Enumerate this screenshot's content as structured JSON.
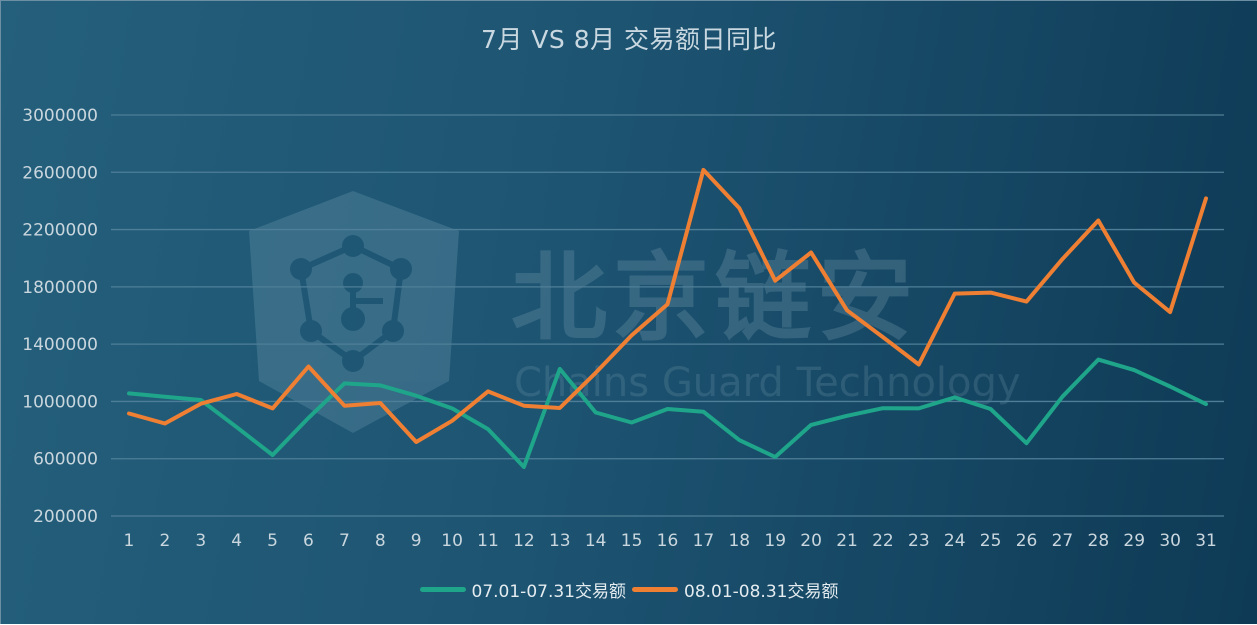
{
  "title": "7月 VS 8月 交易额日同比",
  "watermark": {
    "cn_text": "北京链安",
    "en_text": "Chains Guard Technology",
    "logo": "shield-network-logo"
  },
  "legend": [
    {
      "label": "07.01-07.31交易额",
      "color": "#1fa58a"
    },
    {
      "label": "08.01-08.31交易额",
      "color": "#ee7f33"
    }
  ],
  "colors": {
    "background_start": "#245f7b",
    "background_end": "#0e3a55",
    "gridline": "#4f7f98",
    "tick_text": "#c9d6de",
    "title_text": "#c9d8e0"
  },
  "chart_data": {
    "type": "line",
    "title": "7月 VS 8月 交易额日同比",
    "xlabel": "",
    "ylabel": "",
    "x": [
      1,
      2,
      3,
      4,
      5,
      6,
      7,
      8,
      9,
      10,
      11,
      12,
      13,
      14,
      15,
      16,
      17,
      18,
      19,
      20,
      21,
      22,
      23,
      24,
      25,
      26,
      27,
      28,
      29,
      30,
      31
    ],
    "y_ticks": [
      200000,
      600000,
      1000000,
      1400000,
      1800000,
      2200000,
      2600000,
      3000000
    ],
    "ylim": [
      200000,
      3000000
    ],
    "grid": true,
    "legend_position": "bottom",
    "series": [
      {
        "name": "07.01-07.31交易额",
        "color": "#1fa58a",
        "values": [
          1056000,
          1033000,
          1010000,
          820000,
          626000,
          885000,
          1126000,
          1112000,
          1040000,
          951000,
          807000,
          542000,
          1227000,
          923000,
          853000,
          947000,
          928000,
          730000,
          612000,
          836000,
          900000,
          953000,
          951000,
          1028000,
          947000,
          708000,
          1033000,
          1292000,
          1219000,
          1104000,
          981000
        ]
      },
      {
        "name": "08.01-08.31交易额",
        "color": "#ee7f33",
        "values": [
          916000,
          846000,
          984000,
          1052000,
          951000,
          1244000,
          970000,
          989000,
          717000,
          865000,
          1070000,
          970000,
          954000,
          1200000,
          1461000,
          1679000,
          2617000,
          2350000,
          1843000,
          2040000,
          1636000,
          1449000,
          1258000,
          1753000,
          1760000,
          1697000,
          1994000,
          2263000,
          1830000,
          1624000,
          2418000
        ]
      }
    ]
  }
}
